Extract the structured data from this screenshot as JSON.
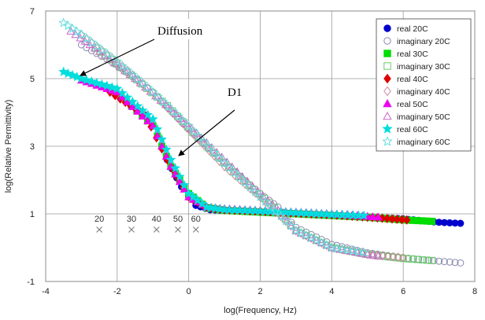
{
  "chart_data": {
    "type": "scatter",
    "xlabel": "log(Frequency, Hz)",
    "ylabel": "log(Relative Permittivity)",
    "xlim": [
      -4,
      8
    ],
    "ylim": [
      -1,
      7
    ],
    "x_ticks": [
      "-4",
      "-2",
      "0",
      "2",
      "4",
      "6",
      "8"
    ],
    "y_ticks": [
      "-1",
      "1",
      "3",
      "5",
      "7"
    ],
    "grid": "on",
    "legend_position": "top-right",
    "annotations": [
      {
        "text": "Diffusion"
      },
      {
        "text": "D1"
      }
    ],
    "temperature_marks": [
      {
        "label": "20",
        "x": -2.5
      },
      {
        "label": "30",
        "x": -1.6
      },
      {
        "label": "40",
        "x": -0.9
      },
      {
        "label": "50",
        "x": -0.3
      },
      {
        "label": "60",
        "x": 0.2
      }
    ],
    "series": [
      {
        "name": "real 20C",
        "color": "#0000cc",
        "marker": "circle-filled",
        "x": [
          -0.6,
          -0.2,
          0.0,
          0.2,
          0.6,
          1.0,
          2.0,
          3.0,
          4.0,
          5.0,
          6.0,
          7.0,
          7.6
        ],
        "y": [
          2.6,
          1.8,
          1.5,
          1.25,
          1.12,
          1.1,
          1.05,
          1.0,
          0.95,
          0.9,
          0.85,
          0.75,
          0.72
        ]
      },
      {
        "name": "imaginary 20C",
        "color": "#8a8ab0",
        "marker": "circle-open",
        "x": [
          -3.0,
          -2.0,
          -1.0,
          0.0,
          1.0,
          2.0,
          2.5,
          3.0,
          4.0,
          5.0,
          6.0,
          7.0,
          7.6
        ],
        "y": [
          6.0,
          5.4,
          4.6,
          3.5,
          2.5,
          1.6,
          1.2,
          0.6,
          0.1,
          -0.15,
          -0.3,
          -0.4,
          -0.45
        ]
      },
      {
        "name": "real 30C",
        "color": "#00dd00",
        "marker": "square-filled",
        "x": [
          -1.6,
          -1.0,
          -0.5,
          0.0,
          0.5,
          1.0,
          2.0,
          3.0,
          4.0,
          5.0,
          6.0,
          6.8
        ],
        "y": [
          4.2,
          3.6,
          2.4,
          1.6,
          1.18,
          1.1,
          1.05,
          1.0,
          0.95,
          0.9,
          0.82,
          0.78
        ]
      },
      {
        "name": "imaginary 30C",
        "color": "#66cc66",
        "marker": "square-open",
        "x": [
          -2.6,
          -1.6,
          -0.6,
          0.4,
          1.4,
          2.4,
          3.0,
          4.0,
          5.0,
          6.0,
          6.8
        ],
        "y": [
          5.9,
          5.1,
          4.2,
          3.1,
          2.1,
          1.2,
          0.5,
          0.0,
          -0.2,
          -0.32,
          -0.38
        ]
      },
      {
        "name": "real 40C",
        "color": "#dd0000",
        "marker": "diamond-filled",
        "x": [
          -2.2,
          -1.2,
          -0.6,
          0.0,
          0.5,
          1.0,
          2.0,
          3.0,
          4.0,
          5.0,
          6.1
        ],
        "y": [
          4.6,
          3.9,
          2.6,
          1.5,
          1.2,
          1.12,
          1.08,
          1.02,
          0.97,
          0.9,
          0.82
        ]
      },
      {
        "name": "imaginary 40C",
        "color": "#cc8899",
        "marker": "diamond-open",
        "x": [
          -3.0,
          -2.0,
          -1.0,
          0.0,
          1.0,
          2.0,
          3.0,
          4.0,
          5.0,
          6.0
        ],
        "y": [
          6.3,
          5.5,
          4.6,
          3.5,
          2.4,
          1.5,
          0.5,
          0.0,
          -0.2,
          -0.3
        ]
      },
      {
        "name": "real 50C",
        "color": "#ee00ee",
        "marker": "triangle-filled",
        "x": [
          -3.0,
          -2.0,
          -1.0,
          -0.5,
          0.0,
          0.5,
          1.0,
          2.0,
          3.0,
          4.0,
          5.0,
          5.3
        ],
        "y": [
          4.95,
          4.6,
          3.6,
          2.4,
          1.5,
          1.2,
          1.15,
          1.1,
          1.05,
          1.0,
          0.92,
          0.9
        ]
      },
      {
        "name": "imaginary 50C",
        "color": "#cc66cc",
        "marker": "triangle-open",
        "x": [
          -3.3,
          -2.5,
          -1.5,
          -0.5,
          0.5,
          1.5,
          2.5,
          3.0,
          4.0,
          5.0,
          5.3
        ],
        "y": [
          6.4,
          5.8,
          5.0,
          4.1,
          3.1,
          2.1,
          1.1,
          0.5,
          0.0,
          -0.2,
          -0.25
        ]
      },
      {
        "name": "real 60C",
        "color": "#00dddd",
        "marker": "star-filled",
        "x": [
          -3.5,
          -3.0,
          -2.0,
          -1.0,
          -0.5,
          0.0,
          0.5,
          1.0,
          2.0,
          3.0,
          4.0,
          4.9
        ],
        "y": [
          5.2,
          5.0,
          4.7,
          3.8,
          2.6,
          1.6,
          1.2,
          1.12,
          1.08,
          1.03,
          0.98,
          0.95
        ]
      },
      {
        "name": "imaginary 60C",
        "color": "#66dddd",
        "marker": "star-open",
        "x": [
          -3.5,
          -3.0,
          -2.0,
          -1.0,
          0.0,
          1.0,
          2.0,
          3.0,
          4.0,
          4.9
        ],
        "y": [
          6.65,
          6.3,
          5.5,
          4.6,
          3.6,
          2.5,
          1.5,
          0.5,
          0.0,
          -0.15
        ]
      }
    ]
  }
}
